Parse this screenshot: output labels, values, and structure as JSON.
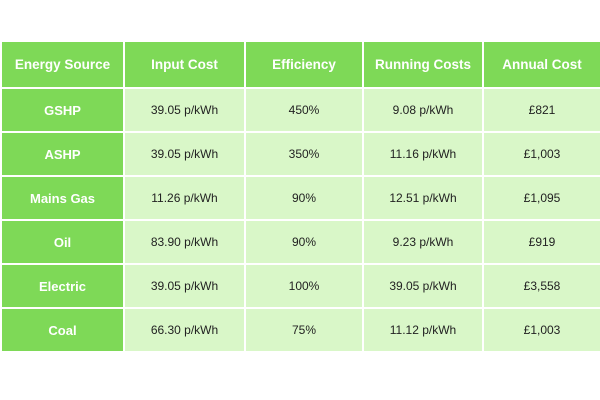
{
  "table": {
    "headers": [
      "Energy Source",
      "Input Cost",
      "Efficiency",
      "Running Costs",
      "Annual Cost"
    ],
    "rows": [
      {
        "source": "GSHP",
        "input_cost": "39.05 p/kWh",
        "efficiency": "450%",
        "running_costs": "9.08 p/kWh",
        "annual_cost": "£821"
      },
      {
        "source": "ASHP",
        "input_cost": "39.05 p/kWh",
        "efficiency": "350%",
        "running_costs": "11.16 p/kWh",
        "annual_cost": "£1,003"
      },
      {
        "source": "Mains Gas",
        "input_cost": "11.26 p/kWh",
        "efficiency": "90%",
        "running_costs": "12.51 p/kWh",
        "annual_cost": "£1,095"
      },
      {
        "source": "Oil",
        "input_cost": "83.90 p/kWh",
        "efficiency": "90%",
        "running_costs": "9.23 p/kWh",
        "annual_cost": "£919"
      },
      {
        "source": "Electric",
        "input_cost": "39.05 p/kWh",
        "efficiency": "100%",
        "running_costs": "39.05 p/kWh",
        "annual_cost": "£3,558"
      },
      {
        "source": "Coal",
        "input_cost": "66.30 p/kWh",
        "efficiency": "75%",
        "running_costs": "11.12 p/kWh",
        "annual_cost": "£1,003"
      }
    ]
  },
  "colors": {
    "header_green": "#7ed957",
    "cell_light_green": "#d9f7c8",
    "text_dark": "#222222",
    "text_white": "#ffffff"
  }
}
